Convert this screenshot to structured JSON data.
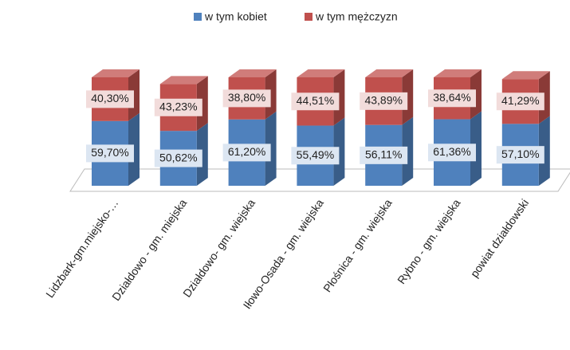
{
  "chart_data": {
    "type": "bar3d_stacked",
    "categories": [
      "Lidzbark-gm.miejsko-…",
      "Działdowo - gm. miejska",
      "Działdowo- gm. wiejska",
      "Iłowo-Osada - gm. wiejska",
      "Płośnica - gm. wiejska",
      "Rybno - gm. wiejska",
      "powiat działdowski"
    ],
    "series": [
      {
        "name": "w tym kobiet",
        "color": "#4f81bd",
        "values": [
          59.7,
          50.62,
          61.2,
          55.49,
          56.11,
          61.36,
          57.1
        ],
        "value_labels": [
          "59,70%",
          "50,62%",
          "61,20%",
          "55,49%",
          "56,11%",
          "61,36%",
          "57,10%"
        ]
      },
      {
        "name": "w tym mężczyzn",
        "color": "#c0504d",
        "values": [
          40.3,
          43.23,
          38.8,
          44.51,
          43.89,
          38.64,
          41.29
        ],
        "value_labels": [
          "40,30%",
          "43,23%",
          "38,80%",
          "44,51%",
          "43,89%",
          "38,64%",
          "41,29%"
        ]
      }
    ],
    "legend": "top"
  }
}
